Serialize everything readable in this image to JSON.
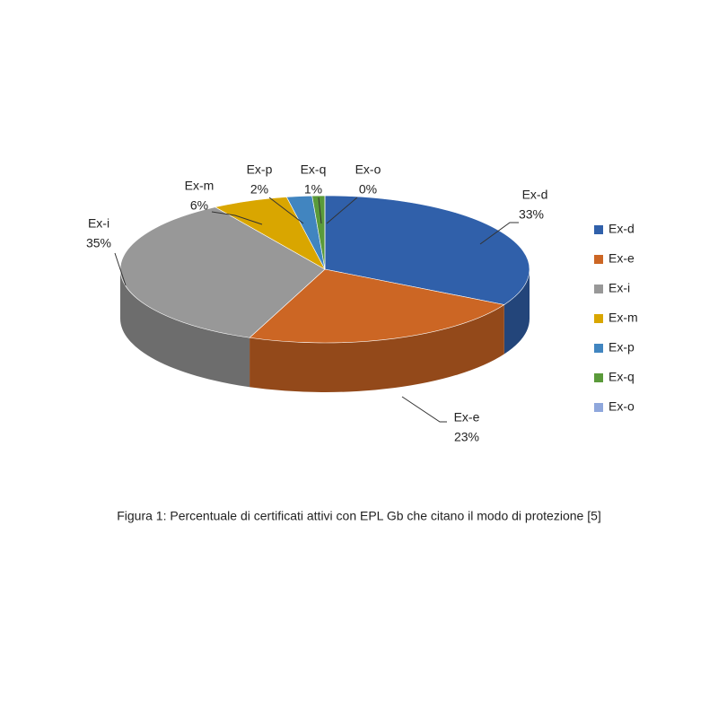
{
  "chart_data": {
    "type": "pie3d",
    "caption": "Figura 1: Percentuale di certificati attivi con EPL Gb che citano il modo di protezione [5]",
    "categories": [
      "Ex-d",
      "Ex-e",
      "Ex-i",
      "Ex-m",
      "Ex-p",
      "Ex-q",
      "Ex-o"
    ],
    "values": [
      33,
      23,
      35,
      6,
      2,
      1,
      0
    ],
    "value_labels": [
      "33%",
      "23%",
      "35%",
      "6%",
      "2%",
      "1%",
      "0%"
    ],
    "colors": [
      "#3060aa",
      "#cc6624",
      "#989898",
      "#d9a600",
      "#4185c0",
      "#5a9a3a",
      "#8fa7dc"
    ],
    "legend": "right"
  }
}
